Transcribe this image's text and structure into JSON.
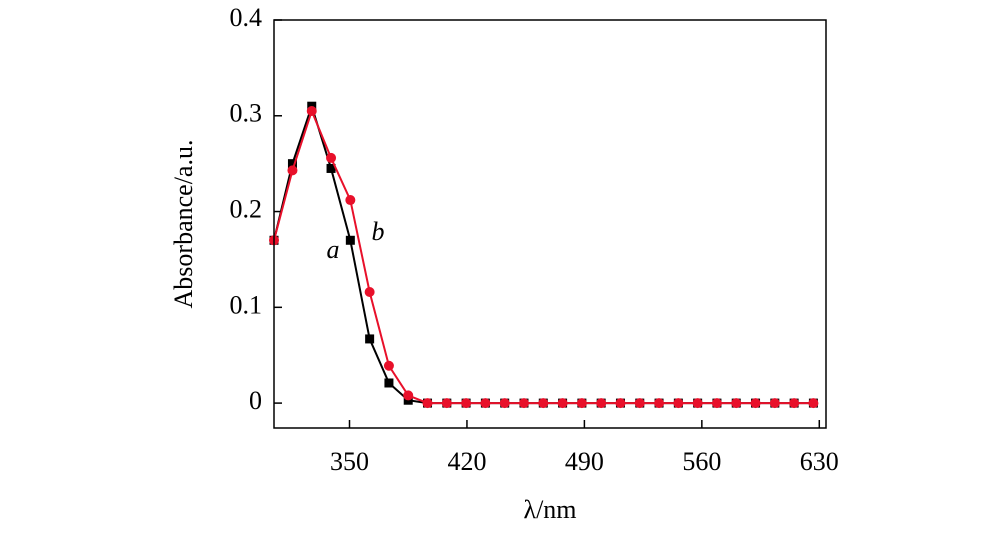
{
  "chart_data": {
    "type": "line",
    "x": [
      305,
      316,
      327.5,
      339,
      350.5,
      362,
      373.5,
      385,
      396.5,
      408,
      419.5,
      431,
      442.5,
      454,
      465.5,
      477,
      488.5,
      500,
      511.5,
      523,
      534.5,
      546,
      557.5,
      569,
      580.5,
      592,
      603.5,
      615,
      626.5
    ],
    "series": [
      {
        "name": "a",
        "color": "#000000",
        "marker": "square",
        "values": [
          0.17,
          0.25,
          0.31,
          0.245,
          0.17,
          0.067,
          0.021,
          0.003,
          0,
          0,
          0,
          0,
          0,
          0,
          0,
          0,
          0,
          0,
          0,
          0,
          0,
          0,
          0,
          0,
          0,
          0,
          0,
          0,
          0
        ]
      },
      {
        "name": "b",
        "color": "#e8102a",
        "marker": "circle",
        "values": [
          0.17,
          0.243,
          0.305,
          0.256,
          0.212,
          0.116,
          0.039,
          0.008,
          0,
          0,
          0,
          0,
          0,
          0,
          0,
          0,
          0,
          0,
          0,
          0,
          0,
          0,
          0,
          0,
          0,
          0,
          0,
          0,
          0
        ]
      }
    ],
    "x_label": "λ/nm",
    "y_label": "Absorbance/a.u.",
    "xlim": [
      305,
      634
    ],
    "xticks": [
      350,
      420,
      490,
      560,
      630
    ],
    "ylim": [
      -0.026,
      0.4
    ],
    "yticks": [
      0,
      0.1,
      0.2,
      0.3,
      0.4
    ]
  }
}
